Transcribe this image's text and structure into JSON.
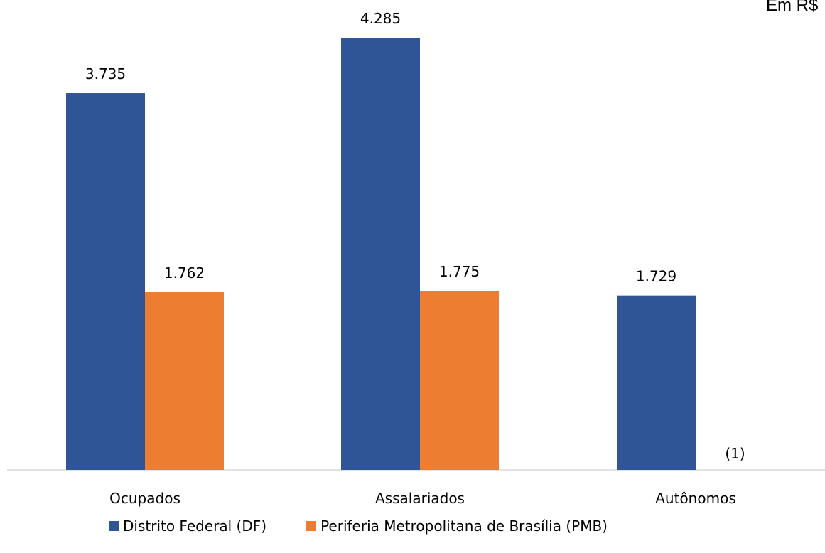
{
  "unit_note": "Em R$",
  "chart_data": {
    "type": "bar",
    "categories": [
      "Ocupados",
      "Assalariados",
      "Autônomos"
    ],
    "series": [
      {
        "name": "Distrito Federal (DF)",
        "color": "#2F5597",
        "values": [
          3735,
          4285,
          1729
        ],
        "labels": [
          "3.735",
          "4.285",
          "1.729"
        ]
      },
      {
        "name": "Periferia Metropolitana de Brasília (PMB)",
        "color": "#ED7D31",
        "values": [
          1762,
          1775,
          null
        ],
        "labels": [
          "1.762",
          "1.775",
          "(1)"
        ]
      }
    ],
    "ylim": [
      0,
      4500
    ],
    "grid": false,
    "legend": "bottom"
  }
}
